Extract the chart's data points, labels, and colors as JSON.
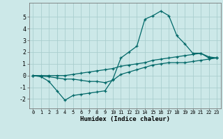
{
  "xlabel": "Humidex (Indice chaleur)",
  "background_color": "#cce8e8",
  "grid_color": "#aacece",
  "line_color": "#006868",
  "xlim": [
    -0.5,
    23.5
  ],
  "ylim": [
    -2.8,
    6.2
  ],
  "xticks": [
    0,
    1,
    2,
    3,
    4,
    5,
    6,
    7,
    8,
    9,
    10,
    11,
    12,
    13,
    14,
    15,
    16,
    17,
    18,
    19,
    20,
    21,
    22,
    23
  ],
  "yticks": [
    -2,
    -1,
    0,
    1,
    2,
    3,
    4,
    5
  ],
  "series": [
    {
      "x": [
        0,
        1,
        2,
        3,
        4,
        5,
        6,
        7,
        8,
        9,
        10,
        11,
        12,
        13,
        14,
        15,
        16,
        17,
        18,
        19,
        20,
        21,
        22,
        23
      ],
      "y": [
        0.0,
        -0.1,
        -0.5,
        -1.3,
        -2.1,
        -1.7,
        -1.6,
        -1.5,
        -1.4,
        -1.3,
        -0.3,
        1.5,
        2.0,
        2.5,
        4.8,
        5.1,
        5.5,
        5.1,
        3.4,
        2.7,
        1.9,
        1.9,
        1.5,
        1.5
      ]
    },
    {
      "x": [
        0,
        1,
        2,
        3,
        4,
        5,
        6,
        7,
        8,
        9,
        10,
        11,
        12,
        13,
        14,
        15,
        16,
        17,
        18,
        19,
        20,
        21,
        22,
        23
      ],
      "y": [
        0.0,
        0.0,
        0.0,
        0.0,
        0.0,
        0.1,
        0.2,
        0.3,
        0.4,
        0.5,
        0.6,
        0.8,
        0.9,
        1.0,
        1.1,
        1.3,
        1.4,
        1.5,
        1.6,
        1.7,
        1.8,
        1.9,
        1.6,
        1.5
      ]
    },
    {
      "x": [
        0,
        1,
        2,
        3,
        4,
        5,
        6,
        7,
        8,
        9,
        10,
        11,
        12,
        13,
        14,
        15,
        16,
        17,
        18,
        19,
        20,
        21,
        22,
        23
      ],
      "y": [
        0.0,
        -0.05,
        -0.1,
        -0.2,
        -0.3,
        -0.3,
        -0.4,
        -0.5,
        -0.5,
        -0.6,
        -0.4,
        0.1,
        0.3,
        0.5,
        0.7,
        0.9,
        1.0,
        1.1,
        1.1,
        1.1,
        1.2,
        1.3,
        1.4,
        1.5
      ]
    }
  ]
}
